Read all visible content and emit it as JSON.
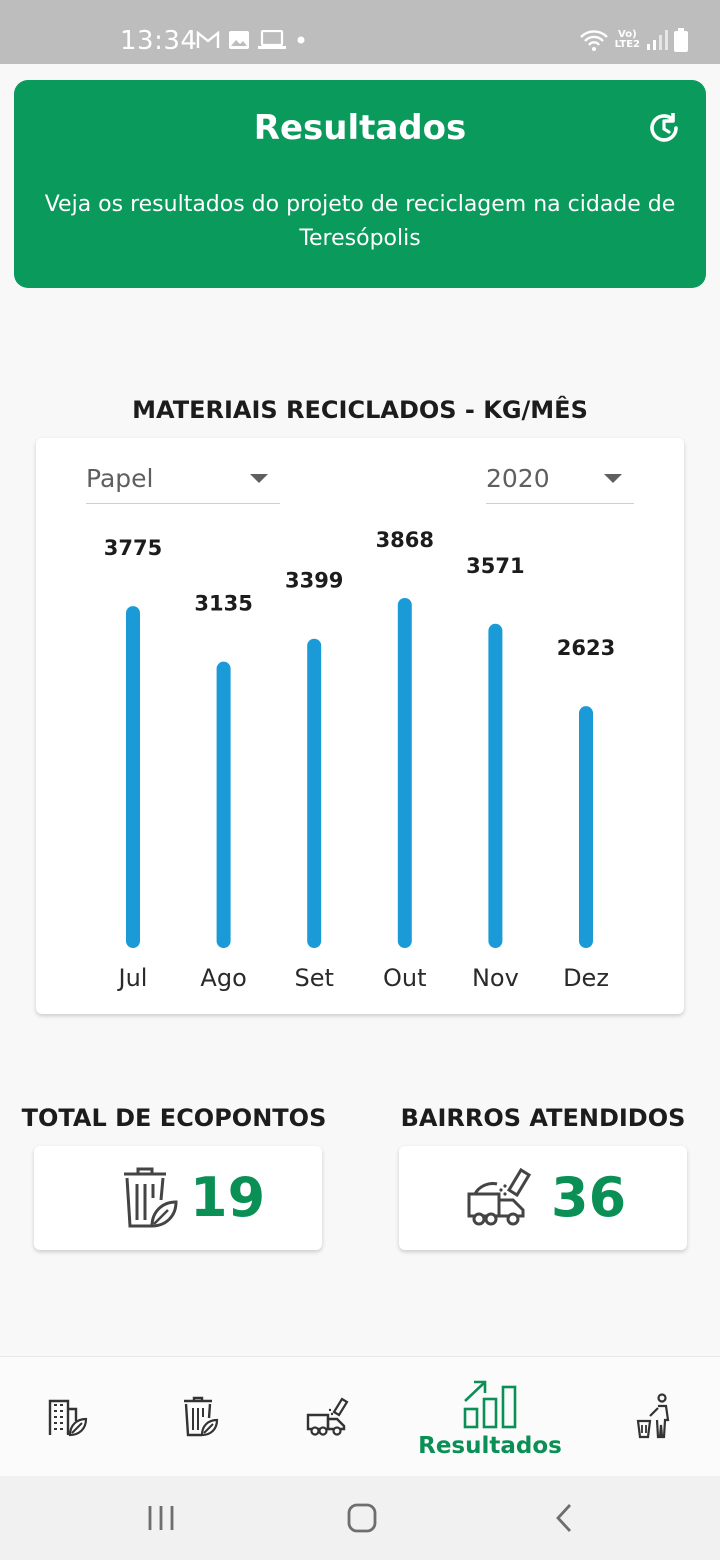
{
  "status_bar": {
    "time": "13:34",
    "network": "LTE2",
    "icons_left": [
      "gmail-icon",
      "image-icon",
      "laptop-icon",
      "dot-icon"
    ],
    "icons_right": [
      "wifi-icon",
      "lte-icon",
      "signal-icon",
      "battery-icon"
    ]
  },
  "header": {
    "title": "Resultados",
    "description": "Veja os resultados do projeto de reciclagem na cidade de Teresópolis",
    "color": "#0a9a5c",
    "icon": "history-icon"
  },
  "chart_section": {
    "heading": "MATERIAIS RECICLADOS - KG/MÊS",
    "material_select": {
      "value": "Papel"
    },
    "year_select": {
      "value": "2020"
    }
  },
  "chart_data": {
    "type": "bar",
    "title": "MATERIAIS RECICLADOS - KG/MÊS",
    "categories": [
      "Jul",
      "Ago",
      "Set",
      "Out",
      "Nov",
      "Dez"
    ],
    "values": [
      3775,
      3135,
      3399,
      3868,
      3571,
      2623
    ],
    "ylim": [
      0,
      3868
    ],
    "grid": false,
    "bar_color": "#1a9bd7"
  },
  "stats": {
    "ecopontos": {
      "title": "TOTAL DE ECOPONTOS",
      "value": "19",
      "icon": "eco-trash-icon"
    },
    "bairros": {
      "title": "BAIRROS ATENDIDOS",
      "value": "36",
      "icon": "garbage-truck-icon"
    }
  },
  "bottom_nav": {
    "items": [
      {
        "icon": "eco-building-icon",
        "label": ""
      },
      {
        "icon": "eco-trash-icon",
        "label": ""
      },
      {
        "icon": "garbage-truck-icon",
        "label": ""
      },
      {
        "icon": "chart-up-icon",
        "label": "Resultados"
      },
      {
        "icon": "person-trash-icon",
        "label": ""
      }
    ],
    "active_color": "#0a8f55"
  },
  "system_nav": [
    "recent-apps-icon",
    "home-icon",
    "back-icon"
  ]
}
